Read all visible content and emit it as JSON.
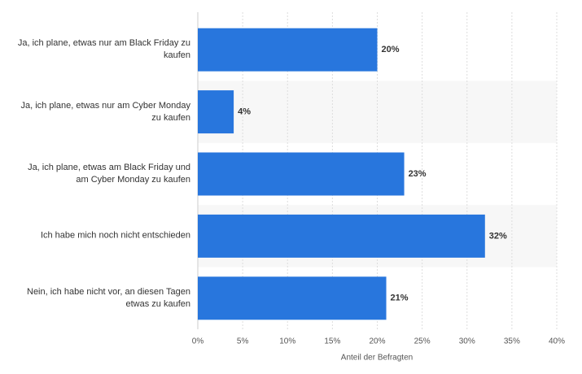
{
  "chart_data": {
    "type": "barh",
    "categories": [
      "Ja, ich plane, etwas nur am Black Friday zu kaufen",
      "Ja, ich plane, etwas nur am Cyber Monday zu kaufen",
      "Ja, ich plane, etwas am Black Friday und am Cyber Monday zu kaufen",
      "Ich habe mich noch nicht entschieden",
      "Nein, ich habe nicht vor, an diesen Tagen etwas zu kaufen"
    ],
    "values": [
      20,
      4,
      23,
      32,
      21
    ],
    "value_labels": [
      "20%",
      "4%",
      "23%",
      "32%",
      "21%"
    ],
    "color": "#2876dd",
    "x_label": "Anteil der Befragten",
    "xlim": [
      0,
      40
    ],
    "xticks": [
      {
        "value": 0,
        "label": "0%"
      },
      {
        "value": 5,
        "label": "5%"
      },
      {
        "value": 10,
        "label": "10%"
      },
      {
        "value": 15,
        "label": "15%"
      },
      {
        "value": 20,
        "label": "20%"
      },
      {
        "value": 25,
        "label": "25%"
      },
      {
        "value": 30,
        "label": "30%"
      },
      {
        "value": 35,
        "label": "35%"
      },
      {
        "value": 40,
        "label": "40%"
      }
    ],
    "grid": true
  }
}
